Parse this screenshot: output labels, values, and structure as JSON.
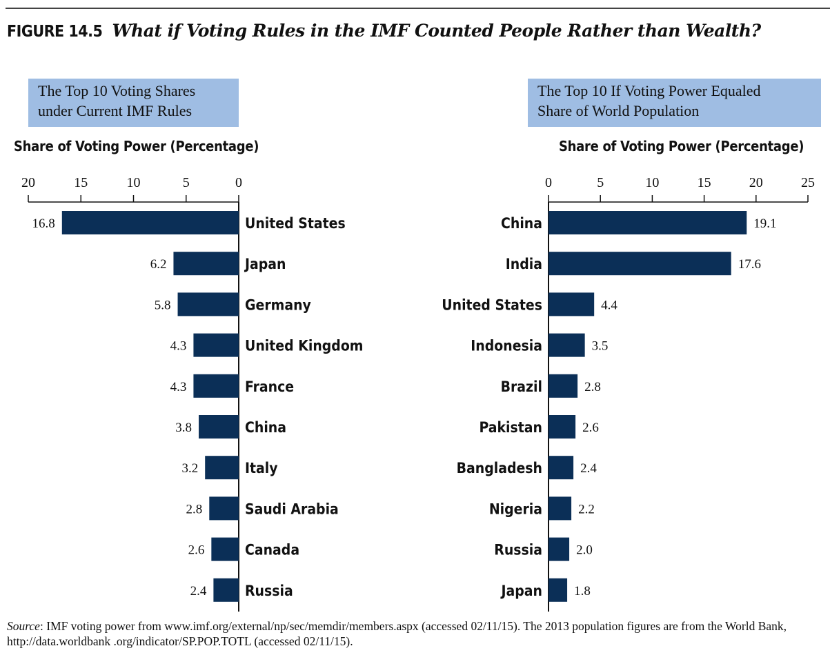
{
  "figure": {
    "number": "FIGURE 14.5",
    "title": "What if Voting Rules in the IMF Counted People Rather than Wealth?"
  },
  "source": {
    "label": "Source",
    "text": ": IMF voting power from www.imf.org/external/np/sec/memdir/members.aspx (accessed 02/11/15). The 2013 population figures are from the World Bank, http://data.worldbank .org/indicator/SP.POP.TOTL (accessed 02/11/15)."
  },
  "colors": {
    "bar": "#0b2f57",
    "title_box": "#9fbde3"
  },
  "chart_data": [
    {
      "type": "bar",
      "orientation": "horizontal",
      "direction": "leftward",
      "title_lines": [
        "The Top 10 Voting Shares",
        "under Current IMF Rules"
      ],
      "xlabel": "Share of Voting Power (Percentage)",
      "xlim": [
        0,
        20
      ],
      "ticks": [
        "0",
        "5",
        "10",
        "15",
        "20"
      ],
      "categories": [
        "United States",
        "Japan",
        "Germany",
        "United Kingdom",
        "France",
        "China",
        "Italy",
        "Saudi Arabia",
        "Canada",
        "Russia"
      ],
      "values": [
        16.8,
        6.2,
        5.8,
        4.3,
        4.3,
        3.8,
        3.2,
        2.8,
        2.6,
        2.4
      ],
      "value_labels": [
        "16.8",
        "6.2",
        "5.8",
        "4.3",
        "4.3",
        "3.8",
        "3.2",
        "2.8",
        "2.6",
        "2.4"
      ]
    },
    {
      "type": "bar",
      "orientation": "horizontal",
      "direction": "rightward",
      "title_lines": [
        "The Top 10 If  Voting Power Equaled",
        "Share of  World Population"
      ],
      "xlabel": "Share of Voting Power (Percentage)",
      "xlim": [
        0,
        25
      ],
      "ticks": [
        "0",
        "5",
        "10",
        "15",
        "20",
        "25"
      ],
      "categories": [
        "China",
        "India",
        "United States",
        "Indonesia",
        "Brazil",
        "Pakistan",
        "Bangladesh",
        "Nigeria",
        "Russia",
        "Japan"
      ],
      "values": [
        19.1,
        17.6,
        4.4,
        3.5,
        2.8,
        2.6,
        2.4,
        2.2,
        2.0,
        1.8
      ],
      "value_labels": [
        "19.1",
        "17.6",
        "4.4",
        "3.5",
        "2.8",
        "2.6",
        "2.4",
        "2.2",
        "2.0",
        "1.8"
      ]
    }
  ]
}
